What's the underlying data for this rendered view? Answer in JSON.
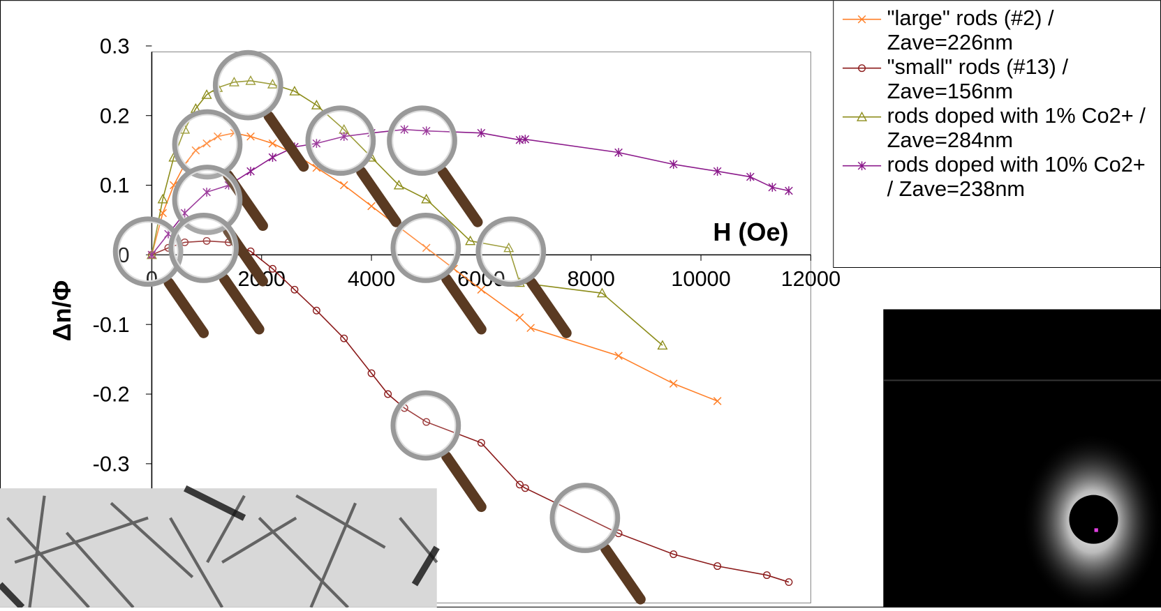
{
  "chart_data": {
    "type": "line",
    "x_label": "H (Oe)",
    "y_label": "Δn/Φ",
    "xlim": [
      0,
      12000
    ],
    "xticks": [
      0,
      2000,
      4000,
      6000,
      8000,
      10000,
      12000
    ],
    "ylim": [
      -0.5,
      0.3
    ],
    "yticks": [
      -0.3,
      -0.2,
      -0.1,
      0,
      0.1,
      0.2,
      0.3
    ],
    "series": [
      {
        "name": "\"large\" rods (#2) / Zave=226nm",
        "color": "#ff7f27",
        "marker": "x",
        "x": [
          0,
          200,
          400,
          600,
          800,
          1000,
          1200,
          1500,
          1800,
          2200,
          2600,
          3000,
          3500,
          4000,
          4500,
          5000,
          5500,
          6000,
          6700,
          6900,
          8500,
          9500,
          10300
        ],
        "values": [
          0,
          0.06,
          0.1,
          0.13,
          0.15,
          0.16,
          0.17,
          0.175,
          0.17,
          0.16,
          0.145,
          0.125,
          0.1,
          0.07,
          0.04,
          0.01,
          -0.02,
          -0.05,
          -0.09,
          -0.105,
          -0.145,
          -0.185,
          -0.21
        ]
      },
      {
        "name": "\"small\" rods (#13) / Zave=156nm",
        "color": "#8b1a1a",
        "marker": "circle",
        "x": [
          0,
          300,
          600,
          1000,
          1400,
          1800,
          2200,
          2600,
          3000,
          3500,
          4000,
          4300,
          4600,
          5000,
          6000,
          6700,
          6800,
          8500,
          9500,
          10300,
          11200,
          11600
        ],
        "values": [
          0,
          0.01,
          0.018,
          0.02,
          0.018,
          0.005,
          -0.02,
          -0.05,
          -0.08,
          -0.12,
          -0.17,
          -0.2,
          -0.22,
          -0.24,
          -0.27,
          -0.33,
          -0.335,
          -0.4,
          -0.43,
          -0.447,
          -0.46,
          -0.47
        ]
      },
      {
        "name": "rods doped with 1% Co2+ / Zave=284nm",
        "color": "#8c8c1a",
        "marker": "triangle",
        "x": [
          0,
          200,
          400,
          600,
          800,
          1000,
          1200,
          1500,
          1800,
          2200,
          2600,
          3000,
          3500,
          4000,
          4500,
          5000,
          5800,
          6500,
          6700,
          8200,
          9300
        ],
        "values": [
          0,
          0.08,
          0.14,
          0.18,
          0.21,
          0.23,
          0.24,
          0.248,
          0.25,
          0.245,
          0.235,
          0.215,
          0.18,
          0.14,
          0.1,
          0.08,
          0.02,
          0.01,
          -0.04,
          -0.055,
          -0.13
        ]
      },
      {
        "name": "rods doped with 10% Co2+ / Zave=238nm",
        "color": "#8b1a8b",
        "marker": "star",
        "x": [
          0,
          300,
          600,
          1000,
          1400,
          1800,
          2200,
          2600,
          3000,
          3500,
          4000,
          4600,
          5000,
          6000,
          6700,
          6800,
          8500,
          9500,
          10300,
          10900,
          11300,
          11600
        ],
        "values": [
          0,
          0.03,
          0.06,
          0.09,
          0.1,
          0.12,
          0.14,
          0.155,
          0.16,
          0.17,
          0.175,
          0.18,
          0.178,
          0.175,
          0.165,
          0.166,
          0.147,
          0.13,
          0.12,
          0.112,
          0.097,
          0.092
        ]
      }
    ]
  }
}
